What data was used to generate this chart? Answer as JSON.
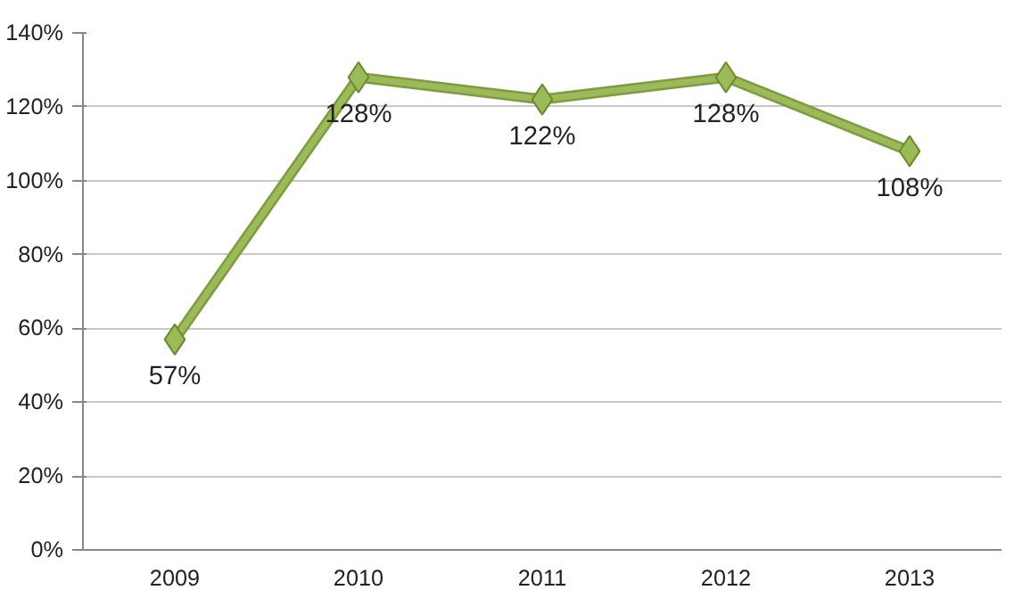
{
  "chart_data": {
    "type": "line",
    "categories": [
      "2009",
      "2010",
      "2011",
      "2012",
      "2013"
    ],
    "series": [
      {
        "color": "#9bbb59",
        "values": [
          57,
          128,
          122,
          128,
          108
        ],
        "value_labels": [
          "57%",
          "128%",
          "122%",
          "128%",
          "108%"
        ]
      }
    ],
    "ylim": [
      0,
      140
    ],
    "yticks": [
      {
        "value": 0,
        "label": "0%"
      },
      {
        "value": 20,
        "label": "20%"
      },
      {
        "value": 40,
        "label": "40%"
      },
      {
        "value": 60,
        "label": "60%"
      },
      {
        "value": 80,
        "label": "80%"
      },
      {
        "value": 100,
        "label": "100%"
      },
      {
        "value": 120,
        "label": "120%"
      },
      {
        "value": 140,
        "label": "140%"
      }
    ],
    "grid": "y",
    "marker": "diamond",
    "line_style": "solid"
  }
}
